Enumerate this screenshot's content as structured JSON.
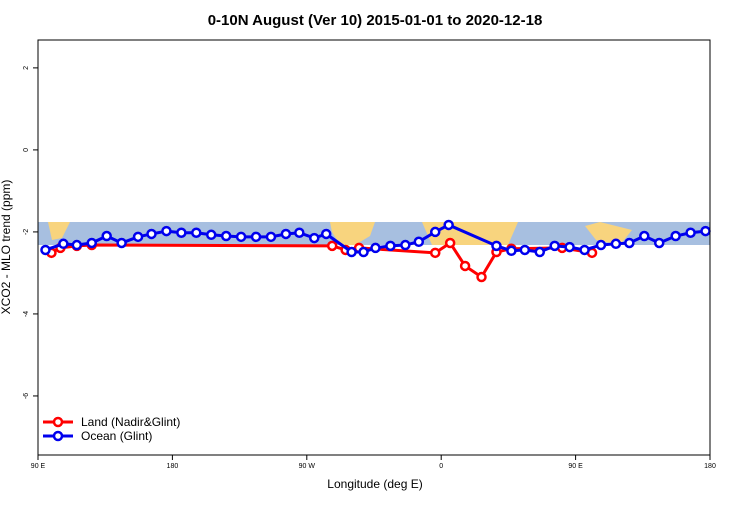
{
  "chart_data": {
    "type": "line",
    "title": "0-10N August (Ver 10)   2015-01-01 to 2020-12-18",
    "xlabel": "Longitude (deg E)",
    "ylabel": "XCO2 - MLO trend (ppm)",
    "xlim": [
      90,
      540
    ],
    "xticks": [
      {
        "value": 90,
        "label": "90 E"
      },
      180,
      {
        "value": 270,
        "label": "90 W"
      },
      {
        "value": 360,
        "label": "0"
      },
      {
        "value": 450,
        "label": "90 E"
      },
      {
        "value": 540,
        "label": "180"
      }
    ],
    "ylim": [
      -7.44,
      2.68
    ],
    "yticks": [
      -6,
      -4,
      -2,
      0,
      2
    ],
    "legend": "bottom-left",
    "series": [
      {
        "name": "Land (Nadir&Glint)",
        "color": "#ff0000",
        "x": [
          99,
          105,
          116,
          126,
          287,
          296,
          305,
          356,
          366,
          376,
          387,
          397,
          407,
          441,
          461
        ],
        "values": [
          -2.51,
          -2.39,
          -2.34,
          -2.32,
          -2.34,
          -2.44,
          -2.39,
          -2.51,
          -2.27,
          -2.83,
          -3.1,
          -2.49,
          -2.41,
          -2.39,
          -2.51
        ]
      },
      {
        "name": "Ocean (Glint)",
        "color": "#0000ee",
        "x": [
          95,
          107,
          116,
          126,
          136,
          146,
          157,
          166,
          176,
          186,
          196,
          206,
          216,
          226,
          236,
          246,
          256,
          265,
          275,
          283,
          300,
          308,
          316,
          326,
          336,
          345,
          356,
          365,
          397,
          407,
          416,
          426,
          436,
          446,
          456,
          467,
          477,
          486,
          496,
          506,
          517,
          527,
          537
        ],
        "values": [
          -2.44,
          -2.29,
          -2.32,
          -2.27,
          -2.1,
          -2.27,
          -2.12,
          -2.05,
          -1.98,
          -2.02,
          -2.02,
          -2.07,
          -2.1,
          -2.12,
          -2.12,
          -2.12,
          -2.05,
          -2.02,
          -2.15,
          -2.05,
          -2.49,
          -2.49,
          -2.39,
          -2.34,
          -2.32,
          -2.24,
          -2.0,
          -1.83,
          -2.34,
          -2.46,
          -2.44,
          -2.49,
          -2.34,
          -2.37,
          -2.44,
          -2.32,
          -2.29,
          -2.27,
          -2.1,
          -2.27,
          -2.1,
          -2.02,
          -1.98
        ]
      }
    ]
  }
}
